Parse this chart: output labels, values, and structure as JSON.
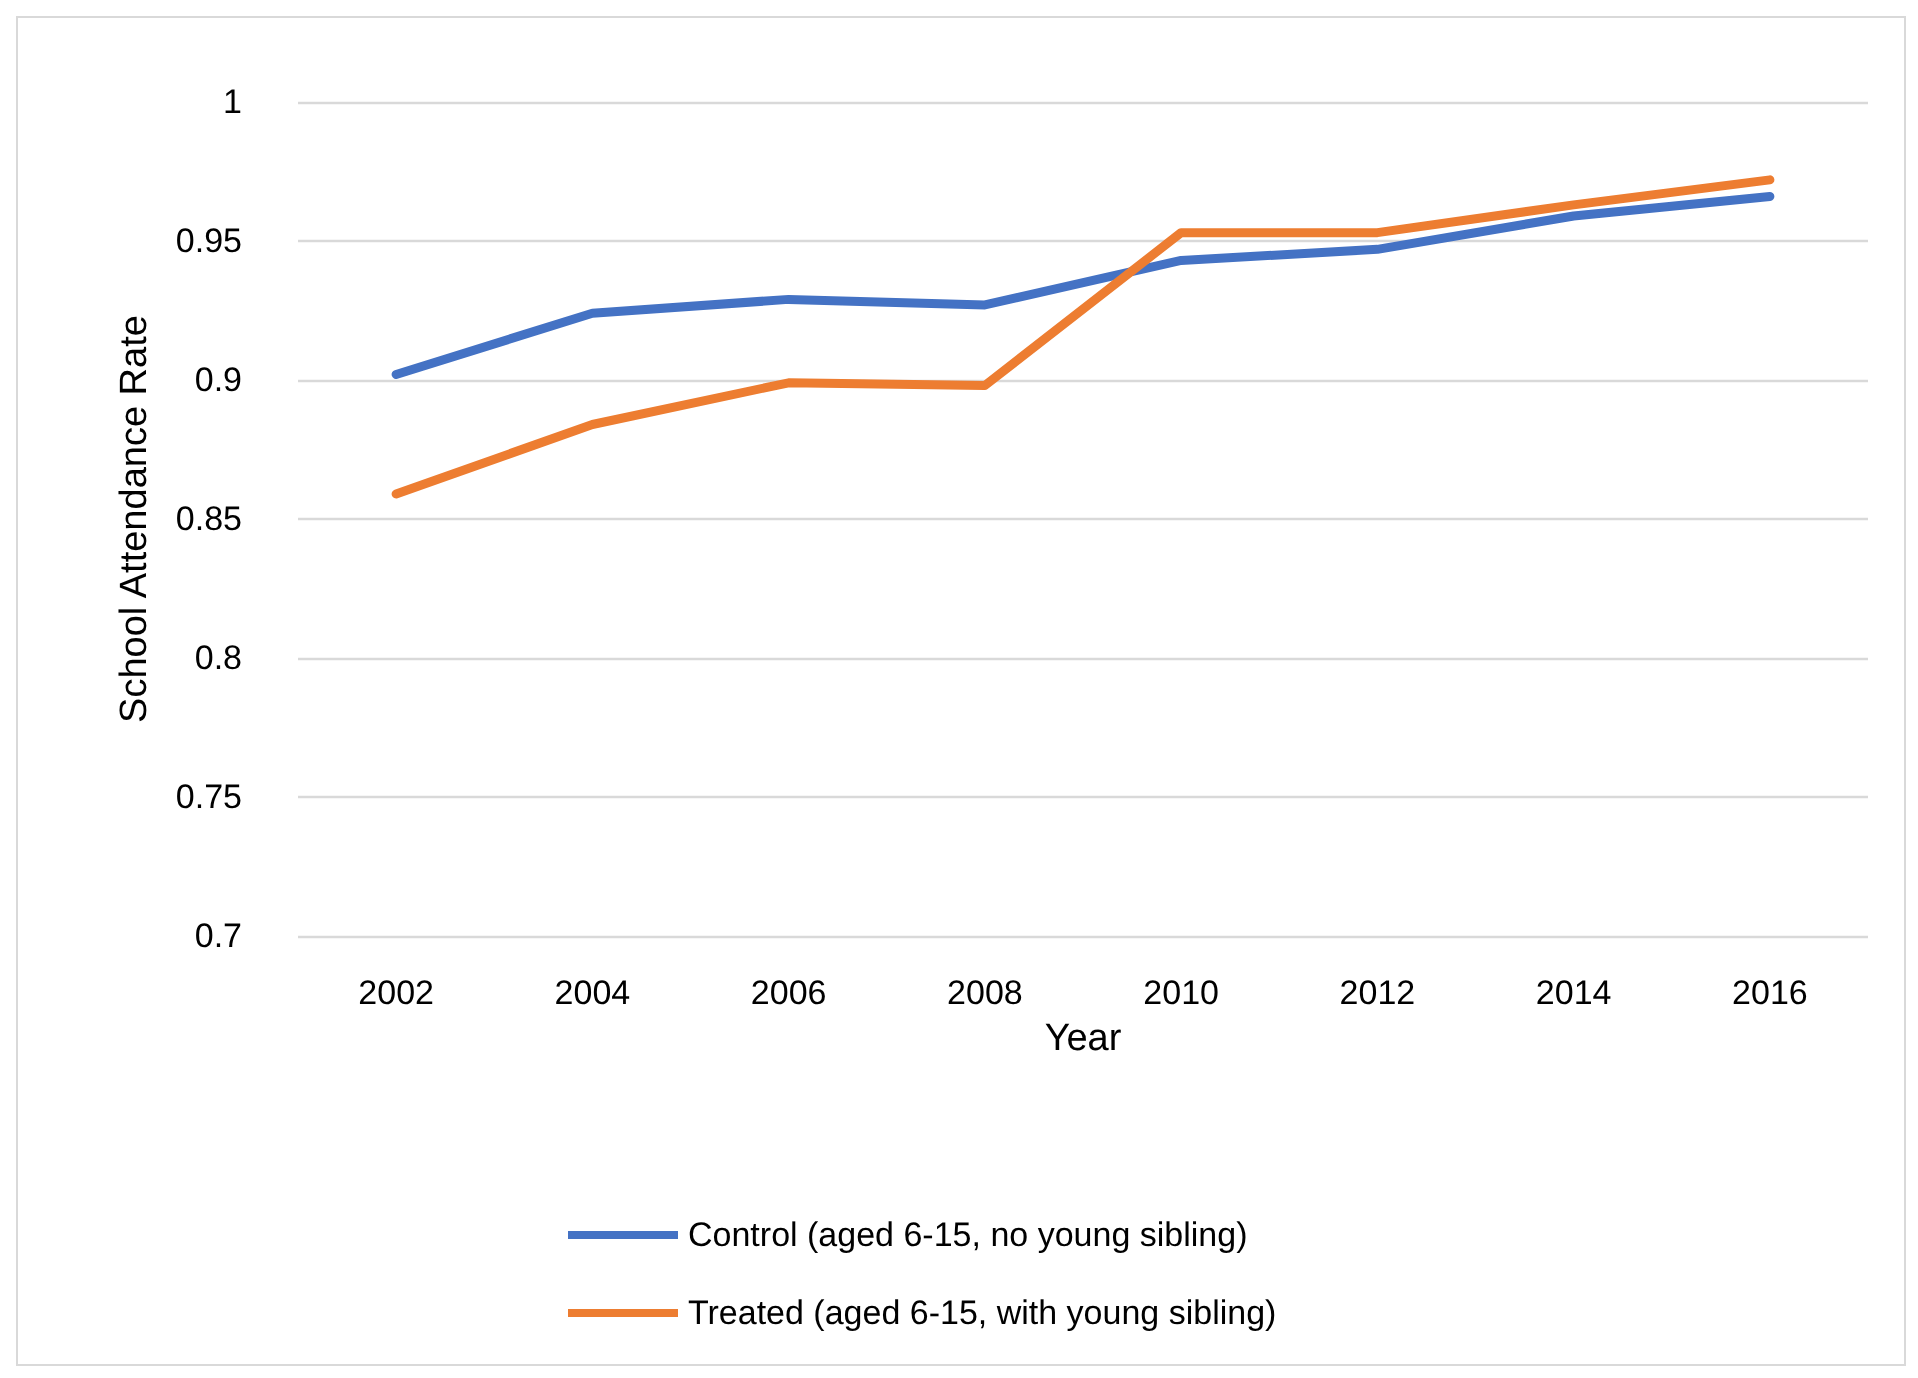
{
  "chart_data": {
    "type": "line",
    "xlabel": "Year",
    "ylabel": "School Attendance Rate",
    "categories": [
      "2002",
      "2004",
      "2006",
      "2008",
      "2010",
      "2012",
      "2014",
      "2016"
    ],
    "series": [
      {
        "name": "Control (aged 6-15, no young sibling)",
        "color": "#4472c4",
        "values": [
          0.902,
          0.924,
          0.929,
          0.927,
          0.943,
          0.947,
          0.959,
          0.966
        ]
      },
      {
        "name": "Treated (aged 6-15, with young sibling)",
        "color": "#ed7d31",
        "values": [
          0.859,
          0.884,
          0.899,
          0.898,
          0.953,
          0.953,
          0.963,
          0.972
        ]
      }
    ],
    "ylim": [
      0.7,
      1
    ],
    "yticks": [
      0.7,
      0.75,
      0.8,
      0.85,
      0.9,
      0.95,
      1
    ],
    "grid": "y",
    "legend": "bottom",
    "marker": "none",
    "line_style": "solid"
  }
}
